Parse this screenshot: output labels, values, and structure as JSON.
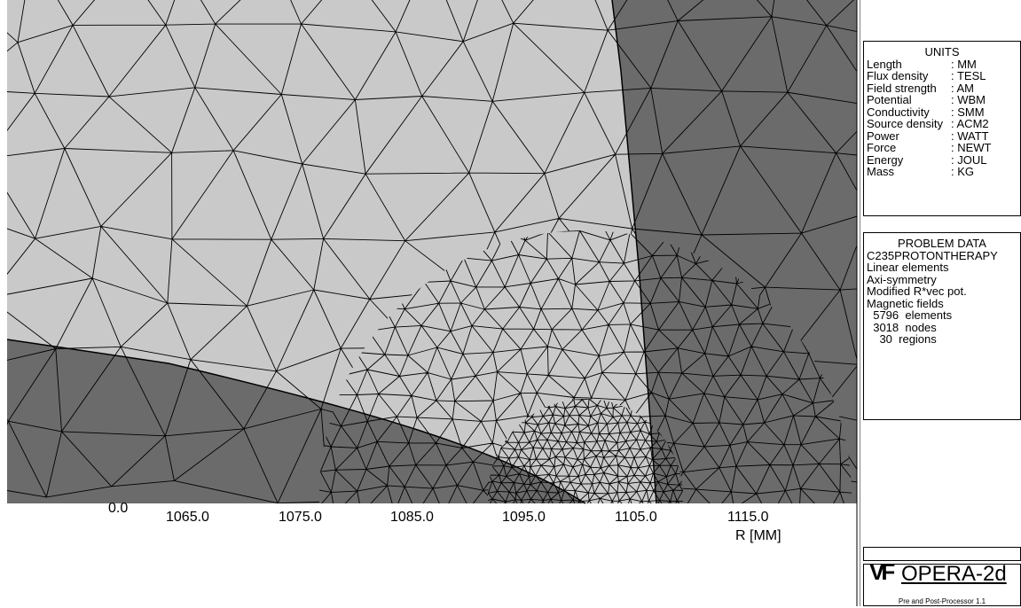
{
  "axis": {
    "ticks": [
      "0.0",
      "1065.0",
      "1075.0",
      "1085.0",
      "1095.0",
      "1105.0",
      "1115.0"
    ],
    "label": "R [MM]"
  },
  "units": {
    "title": "UNITS",
    "rows": [
      [
        "Length",
        ": MM"
      ],
      [
        "Flux density",
        ": TESL"
      ],
      [
        "Field strength",
        ": AM"
      ],
      [
        "Potential",
        ": WBM"
      ],
      [
        "Conductivity",
        ": SMM"
      ],
      [
        "Source density",
        ": ACM2"
      ],
      [
        "Power",
        ": WATT"
      ],
      [
        "Force",
        ": NEWT"
      ],
      [
        "Energy",
        ": JOUL"
      ],
      [
        "Mass",
        ": KG"
      ]
    ]
  },
  "problem": {
    "title": "PROBLEM DATA",
    "lines": [
      "C235PROTONTHERAPY",
      "Linear elements",
      "Axi-symmetry",
      "Modified R*vec pot.",
      "Magnetic fields",
      "  5796  elements",
      "  3018  nodes",
      "    30  regions"
    ]
  },
  "logo": {
    "mark": "VF",
    "name": "OPERA-2d",
    "subtitle": "Pre and Post-Processor 1.1"
  }
}
